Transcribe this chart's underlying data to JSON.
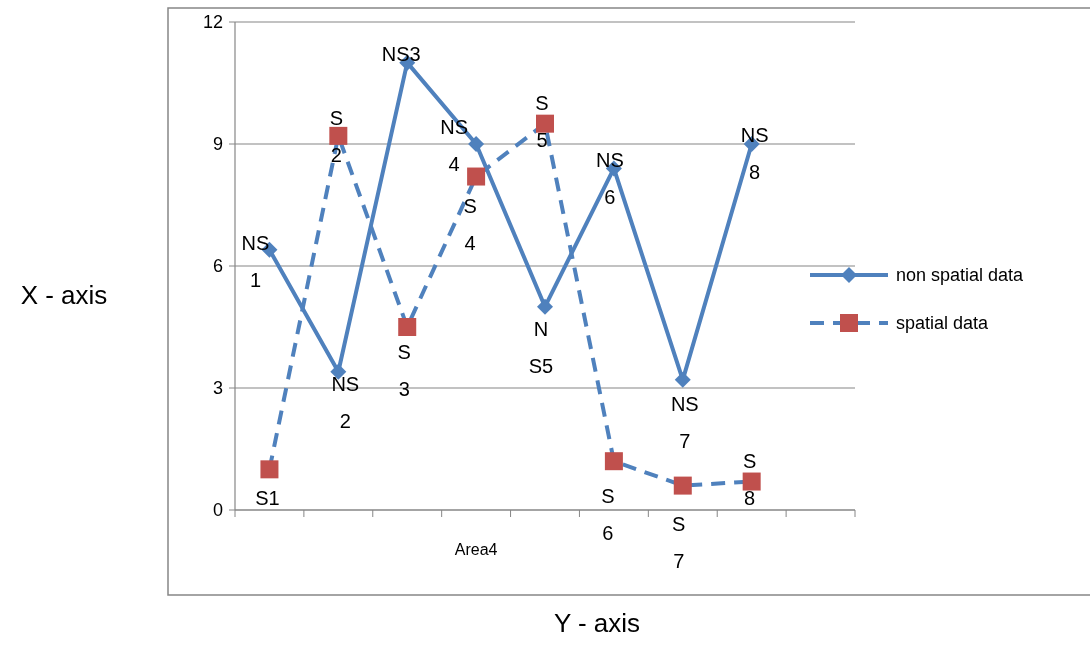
{
  "chart_data": {
    "type": "line",
    "xlabel": "Y - axis",
    "ylabel": "X - axis",
    "categories": [
      null,
      null,
      null,
      "Area4",
      null,
      null,
      null,
      null,
      null
    ],
    "ylim": [
      0,
      12
    ],
    "yticks": [
      0,
      3,
      6,
      9,
      12
    ],
    "grid": "y",
    "legend": "right",
    "series": [
      {
        "name": "non spatial data",
        "color": "#4f81bd",
        "marker": "diamond",
        "line_style": "solid",
        "values": [
          6.4,
          3.4,
          11.0,
          9.0,
          5.0,
          8.4,
          3.2,
          9.0,
          null
        ],
        "value_labels": [
          "NS\n1",
          "NS\n2",
          "NS3",
          "NS\n4",
          "N\nS5",
          "NS\n6",
          "NS\n7",
          "NS\n8",
          null
        ]
      },
      {
        "name": "spatial data",
        "color": "#4f81bd",
        "colors": [
          "#c0504d",
          "#c0504d",
          "#c0504d",
          "#c0504d",
          "#c0504d",
          "#c0504d",
          "#c0504d",
          "#c0504d",
          null
        ],
        "marker": "square",
        "line_style": "dashed",
        "values": [
          1.0,
          9.2,
          4.5,
          8.2,
          9.5,
          1.2,
          0.6,
          0.7,
          null
        ],
        "value_labels": [
          "S1",
          "S\n2",
          "S\n3",
          "S\n4",
          "S\n5",
          "S\n6",
          "S\n7",
          "S\n8",
          null
        ]
      }
    ]
  }
}
